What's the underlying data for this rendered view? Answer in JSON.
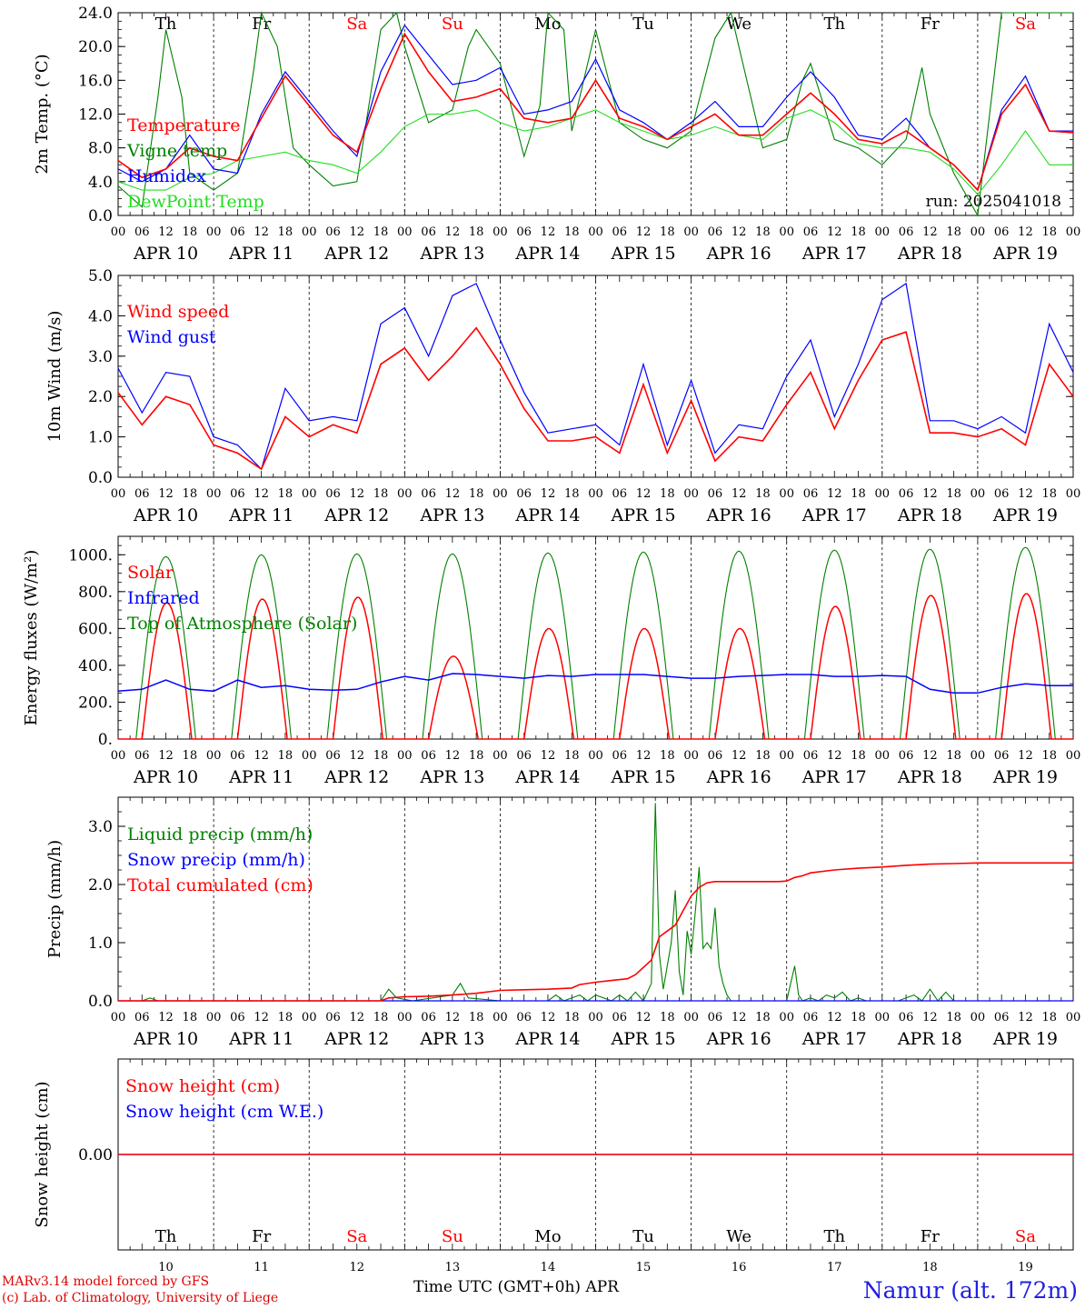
{
  "footer": {
    "model_line": "MARv3.14 model forced by GFS",
    "lab_line": "(c) Lab. of Climatology, University of Liege",
    "x_axis_title": "Time UTC (GMT+0h) APR",
    "station": "Namur (alt. 172m)"
  },
  "days": {
    "names": [
      "Th",
      "Fr",
      "Sa",
      "Su",
      "Mo",
      "Tu",
      "We",
      "Th",
      "Fr",
      "Sa"
    ],
    "weekend": [
      false,
      false,
      true,
      true,
      false,
      false,
      false,
      false,
      false,
      true
    ],
    "dates": [
      "APR 10",
      "APR 11",
      "APR 12",
      "APR 13",
      "APR 14",
      "APR 15",
      "APR 16",
      "APR 17",
      "APR 18",
      "APR 19"
    ],
    "day_numbers": [
      "10",
      "11",
      "12",
      "13",
      "14",
      "15",
      "16",
      "17",
      "18",
      "19"
    ],
    "hour_ticks": [
      "00",
      "06",
      "12",
      "18"
    ],
    "final_hour_tick": "00"
  },
  "colors": {
    "red": "#ff0000",
    "green": "#008000",
    "blue": "#0000ff",
    "light_green": "#22dd22",
    "weekend": "#ff0000",
    "grid": "#000000"
  },
  "chart_data": [
    {
      "type": "line",
      "ylabel": "2m Temp. (°C)",
      "ylim": [
        0,
        24
      ],
      "yticks": [
        "0.0",
        "4.0",
        "8.0",
        "12.0",
        "16.0",
        "20.0",
        "24.0"
      ],
      "annotation": "run: 2025041018",
      "x_unit": "hours since APR 10 00 UTC",
      "series": [
        {
          "name": "Temperature",
          "color": "#ff0000",
          "x": [
            0,
            6,
            12,
            18,
            24,
            30,
            36,
            42,
            48,
            54,
            60,
            66,
            72,
            78,
            84,
            90,
            96,
            102,
            108,
            114,
            120,
            126,
            132,
            138,
            144,
            150,
            156,
            162,
            168,
            174,
            180,
            186,
            192,
            198,
            204,
            210,
            216,
            222,
            228,
            234,
            240
          ],
          "y": [
            6.5,
            4.5,
            5.5,
            8.0,
            7.0,
            6.5,
            11.5,
            16.5,
            13.0,
            9.5,
            7.5,
            15.0,
            21.5,
            17.0,
            13.5,
            14.0,
            15.0,
            11.5,
            11.0,
            11.5,
            16.0,
            11.5,
            10.5,
            9.0,
            10.5,
            12.0,
            9.5,
            9.5,
            12.0,
            14.5,
            12.0,
            9.0,
            8.5,
            10.0,
            8.0,
            6.0,
            3.0,
            12.0,
            15.5,
            10.0,
            9.8
          ]
        },
        {
          "name": "Vigne temp",
          "color": "#008000",
          "x": [
            0,
            6,
            10,
            12,
            16,
            18,
            24,
            30,
            34,
            36,
            40,
            44,
            48,
            54,
            60,
            66,
            70,
            72,
            78,
            84,
            88,
            90,
            96,
            102,
            106,
            108,
            112,
            114,
            120,
            126,
            132,
            138,
            144,
            150,
            154,
            156,
            162,
            168,
            172,
            174,
            180,
            186,
            192,
            198,
            202,
            204,
            210,
            216,
            222,
            228,
            234,
            240
          ],
          "y": [
            3.5,
            1.0,
            14.0,
            22.0,
            14.0,
            5.0,
            3.0,
            5.0,
            17.0,
            24.0,
            20.0,
            8.0,
            6.0,
            3.5,
            4.0,
            22.0,
            24.0,
            20.0,
            11.0,
            12.5,
            20.0,
            22.0,
            18.0,
            7.0,
            13.0,
            24.0,
            22.0,
            10.0,
            22.0,
            11.0,
            9.0,
            8.0,
            10.0,
            21.0,
            24.0,
            20.0,
            8.0,
            9.0,
            16.0,
            18.0,
            9.0,
            8.0,
            6.0,
            9.0,
            17.5,
            12.0,
            5.0,
            0.0,
            24.0,
            24.0,
            24.0,
            24.0
          ]
        },
        {
          "name": "Humidex",
          "color": "#0000ff",
          "x": [
            0,
            6,
            12,
            18,
            24,
            30,
            36,
            42,
            48,
            54,
            60,
            66,
            72,
            78,
            84,
            90,
            96,
            102,
            108,
            114,
            120,
            126,
            132,
            138,
            144,
            150,
            156,
            162,
            168,
            174,
            180,
            186,
            192,
            198,
            204,
            210,
            216,
            222,
            228,
            234,
            240
          ],
          "y": [
            5.5,
            4.0,
            5.5,
            9.5,
            5.5,
            5.0,
            12.0,
            17.0,
            13.5,
            10.0,
            7.0,
            17.0,
            22.5,
            19.0,
            15.5,
            16.0,
            17.5,
            12.0,
            12.5,
            13.5,
            18.5,
            12.5,
            11.0,
            9.0,
            11.0,
            13.5,
            10.5,
            10.5,
            14.0,
            17.0,
            14.0,
            9.5,
            9.0,
            11.5,
            8.0,
            6.0,
            3.0,
            12.5,
            16.5,
            10.0,
            10.0
          ]
        },
        {
          "name": "DewPoint Temp",
          "color": "#22dd22",
          "x": [
            0,
            6,
            12,
            18,
            24,
            30,
            36,
            42,
            48,
            54,
            60,
            66,
            72,
            78,
            84,
            90,
            96,
            102,
            108,
            114,
            120,
            126,
            132,
            138,
            144,
            150,
            156,
            162,
            168,
            174,
            180,
            186,
            192,
            198,
            204,
            210,
            216,
            222,
            228,
            234,
            240
          ],
          "y": [
            4.0,
            3.0,
            3.0,
            4.5,
            5.0,
            6.5,
            7.0,
            7.5,
            6.5,
            6.0,
            5.0,
            7.5,
            10.5,
            12.0,
            12.0,
            12.5,
            11.0,
            10.0,
            10.5,
            11.5,
            12.5,
            11.0,
            10.0,
            9.0,
            9.5,
            10.5,
            9.5,
            9.0,
            11.5,
            12.5,
            11.0,
            8.5,
            8.0,
            8.0,
            7.5,
            5.5,
            2.5,
            6.0,
            10.0,
            6.0,
            6.0
          ]
        }
      ]
    },
    {
      "type": "line",
      "ylabel": "10m Wind (m/s)",
      "ylim": [
        0,
        5
      ],
      "yticks": [
        "0.0",
        "1.0",
        "2.0",
        "3.0",
        "4.0",
        "5.0"
      ],
      "x_unit": "hours since APR 10 00 UTC",
      "series": [
        {
          "name": "Wind speed",
          "color": "#ff0000",
          "x": [
            0,
            6,
            12,
            18,
            24,
            30,
            36,
            42,
            48,
            54,
            60,
            66,
            72,
            78,
            84,
            90,
            96,
            102,
            108,
            114,
            120,
            126,
            132,
            138,
            144,
            150,
            156,
            162,
            168,
            174,
            180,
            186,
            192,
            198,
            204,
            210,
            216,
            222,
            228,
            234,
            240
          ],
          "y": [
            2.1,
            1.3,
            2.0,
            1.8,
            0.8,
            0.6,
            0.2,
            1.5,
            1.0,
            1.3,
            1.1,
            2.8,
            3.2,
            2.4,
            3.0,
            3.7,
            2.8,
            1.7,
            0.9,
            0.9,
            1.0,
            0.6,
            2.3,
            0.6,
            1.9,
            0.4,
            1.0,
            0.9,
            1.8,
            2.6,
            1.2,
            2.4,
            3.4,
            3.6,
            1.1,
            1.1,
            1.0,
            1.2,
            0.8,
            2.8,
            2.0
          ]
        },
        {
          "name": "Wind gust",
          "color": "#0000ff",
          "x": [
            0,
            6,
            12,
            18,
            24,
            30,
            36,
            42,
            48,
            54,
            60,
            66,
            72,
            78,
            84,
            90,
            96,
            102,
            108,
            114,
            120,
            126,
            132,
            138,
            144,
            150,
            156,
            162,
            168,
            174,
            180,
            186,
            192,
            198,
            204,
            210,
            216,
            222,
            228,
            234,
            240
          ],
          "y": [
            2.7,
            1.6,
            2.6,
            2.5,
            1.0,
            0.8,
            0.2,
            2.2,
            1.4,
            1.5,
            1.4,
            3.8,
            4.2,
            3.0,
            4.5,
            4.8,
            3.4,
            2.1,
            1.1,
            1.2,
            1.3,
            0.8,
            2.8,
            0.8,
            2.4,
            0.6,
            1.3,
            1.2,
            2.5,
            3.4,
            1.5,
            2.8,
            4.4,
            4.8,
            1.4,
            1.4,
            1.2,
            1.5,
            1.1,
            3.8,
            2.6
          ]
        }
      ]
    },
    {
      "type": "line",
      "ylabel": "Energy fluxes (W/m²)",
      "ylim": [
        0,
        1100
      ],
      "yticks": [
        "0.",
        "200.",
        "400.",
        "600.",
        "800.",
        "1000."
      ],
      "x_unit": "hours since APR 10 00 UTC",
      "series": [
        {
          "name": "Solar",
          "color": "#ff0000",
          "daily_peaks": [
            740,
            760,
            770,
            450,
            600,
            600,
            600,
            720,
            780,
            790
          ]
        },
        {
          "name": "Infrared",
          "color": "#0000ff",
          "x": [
            0,
            6,
            12,
            18,
            24,
            30,
            36,
            42,
            48,
            54,
            60,
            66,
            72,
            78,
            84,
            90,
            96,
            102,
            108,
            114,
            120,
            126,
            132,
            138,
            144,
            150,
            156,
            162,
            168,
            174,
            180,
            186,
            192,
            198,
            204,
            210,
            216,
            222,
            228,
            234,
            240
          ],
          "y": [
            260,
            270,
            320,
            270,
            260,
            320,
            280,
            290,
            270,
            265,
            270,
            310,
            340,
            320,
            355,
            350,
            340,
            330,
            345,
            340,
            350,
            350,
            350,
            340,
            330,
            330,
            340,
            345,
            350,
            350,
            340,
            340,
            345,
            340,
            270,
            250,
            250,
            280,
            300,
            290,
            290
          ]
        },
        {
          "name": "Top of Atmosphere (Solar)",
          "color": "#008000",
          "daily_peaks": [
            990,
            1000,
            1005,
            1005,
            1010,
            1015,
            1020,
            1025,
            1030,
            1040
          ]
        }
      ]
    },
    {
      "type": "line",
      "ylabel": "Precip (mm/h)",
      "ylim": [
        0,
        3.5
      ],
      "yticks": [
        "0.0",
        "1.0",
        "2.0",
        "3.0"
      ],
      "x_unit": "hours since APR 10 00 UTC",
      "series": [
        {
          "name": "Liquid precip (mm/h)",
          "color": "#008000",
          "x": [
            0,
            6,
            8,
            10,
            50,
            66,
            68,
            70,
            74,
            84,
            86,
            88,
            96,
            108,
            110,
            112,
            116,
            118,
            120,
            124,
            126,
            128,
            130,
            132,
            134,
            135,
            136,
            137,
            138,
            139,
            140,
            141,
            142,
            143,
            144,
            145,
            146,
            147,
            148,
            149,
            150,
            151,
            152,
            153,
            154,
            156,
            158,
            160,
            164,
            168,
            170,
            171,
            172,
            174,
            176,
            178,
            180,
            182,
            184,
            186,
            188,
            190,
            196,
            200,
            202,
            204,
            206,
            208,
            210,
            240
          ],
          "y": [
            0,
            0,
            0.05,
            0,
            0,
            0,
            0.2,
            0.05,
            0,
            0.1,
            0.3,
            0.05,
            0,
            0,
            0.1,
            0,
            0.1,
            0,
            0.1,
            0,
            0.1,
            0,
            0.15,
            0,
            0.3,
            3.4,
            0.8,
            0.2,
            0.6,
            1.0,
            1.9,
            0.5,
            0.1,
            1.2,
            0.8,
            1.5,
            2.3,
            0.9,
            1.0,
            0.9,
            1.6,
            0.6,
            0.3,
            0.1,
            0,
            0,
            0,
            0,
            0,
            0,
            0.6,
            0.1,
            0,
            0.05,
            0,
            0.1,
            0.05,
            0.15,
            0,
            0.05,
            0,
            0,
            0,
            0.1,
            0,
            0.2,
            0,
            0.15,
            0,
            0
          ]
        },
        {
          "name": "Snow precip (mm/h)",
          "color": "#0000ff",
          "x": [
            0,
            240
          ],
          "y": [
            0,
            0
          ]
        },
        {
          "name": "Total cumulated (cm)",
          "color": "#ff0000",
          "x": [
            0,
            66,
            68,
            72,
            78,
            84,
            90,
            96,
            102,
            108,
            114,
            116,
            120,
            124,
            128,
            130,
            134,
            136,
            138,
            140,
            142,
            144,
            146,
            148,
            150,
            152,
            154,
            156,
            158,
            160,
            162,
            166,
            168,
            170,
            172,
            174,
            180,
            186,
            192,
            198,
            204,
            210,
            216,
            222,
            228,
            234,
            240
          ],
          "y": [
            0,
            0,
            0.05,
            0.07,
            0.08,
            0.1,
            0.13,
            0.18,
            0.19,
            0.2,
            0.22,
            0.28,
            0.32,
            0.35,
            0.38,
            0.45,
            0.7,
            1.1,
            1.2,
            1.3,
            1.55,
            1.8,
            1.95,
            2.03,
            2.05,
            2.05,
            2.05,
            2.05,
            2.05,
            2.05,
            2.05,
            2.05,
            2.06,
            2.12,
            2.15,
            2.2,
            2.25,
            2.28,
            2.3,
            2.33,
            2.35,
            2.36,
            2.37,
            2.37,
            2.37,
            2.37,
            2.37
          ]
        }
      ]
    },
    {
      "type": "line",
      "ylabel": "Snow height (cm)",
      "yticks": [
        "0.00"
      ],
      "x_unit": "hours since APR 10 00 UTC",
      "series": [
        {
          "name": "Snow height (cm)",
          "color": "#ff0000",
          "x": [
            0,
            240
          ],
          "y": [
            0,
            0
          ]
        },
        {
          "name": "Snow height (cm W.E.)",
          "color": "#0000ff",
          "x": [
            0,
            240
          ],
          "y": [
            0,
            0
          ]
        }
      ]
    }
  ]
}
